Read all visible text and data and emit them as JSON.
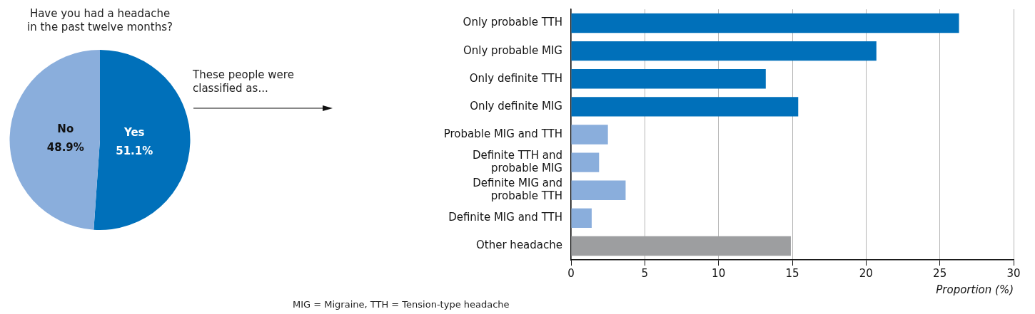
{
  "chart_data": [
    {
      "type": "pie",
      "title": "Have you had a headache\nin the past twelve months?",
      "categories": [
        "Yes",
        "No"
      ],
      "values": [
        51.1,
        48.9
      ],
      "colors": [
        "#0070ba",
        "#8aaedc"
      ],
      "value_labels": [
        "51.1%",
        "48.9%"
      ],
      "annotations": [
        "These people were\nclassified as..."
      ],
      "legend": false
    },
    {
      "type": "bar",
      "orientation": "horizontal",
      "categories": [
        "Only probable TTH",
        "Only probable MIG",
        "Only definite TTH",
        "Only definite MIG",
        "Probable MIG and TTH",
        "Definite TTH and\nprobable MIG",
        "Definite MIG and\nprobable TTH",
        "Definite MIG and TTH",
        "Other headache"
      ],
      "values": [
        26.3,
        20.7,
        13.2,
        15.4,
        2.5,
        1.9,
        3.7,
        1.4,
        14.9
      ],
      "colors": [
        "#0070ba",
        "#0070ba",
        "#0070ba",
        "#0070ba",
        "#8aaedc",
        "#8aaedc",
        "#8aaedc",
        "#8aaedc",
        "#9d9ea0"
      ],
      "xlim": [
        0,
        30
      ],
      "xticks": [
        0,
        5,
        10,
        15,
        20,
        25,
        30
      ],
      "xlabel": "Proportion (%)",
      "grid": "x",
      "legend": false,
      "annotations": [
        "MIG = Migraine, TTH = Tension-type headache"
      ]
    }
  ]
}
